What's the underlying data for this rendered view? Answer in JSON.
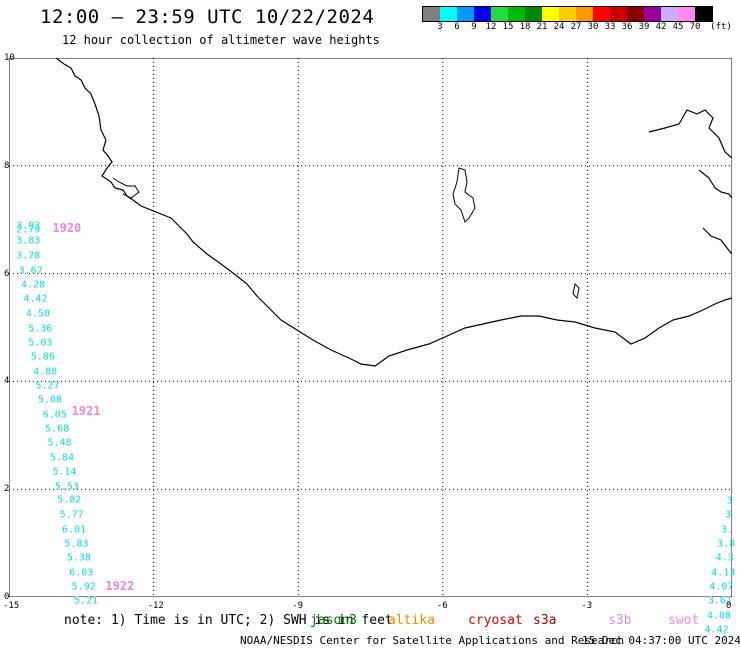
{
  "header": {
    "title": "12:00 – 23:59 UTC 10/22/2024",
    "subtitle": "12 hour collection of altimeter wave heights"
  },
  "legend": {
    "unit": "(ft)",
    "colors": [
      "#808080",
      "#00ffff",
      "#0099ff",
      "#0000ee",
      "#22dd44",
      "#00bb00",
      "#008800",
      "#ffff00",
      "#ffcc00",
      "#ff9900",
      "#ff0000",
      "#cc0000",
      "#880000",
      "#990099",
      "#ccaaff",
      "#ff88ee",
      "#000000"
    ],
    "ticks": [
      "3",
      "6",
      "9",
      "12",
      "15",
      "18",
      "21",
      "24",
      "27",
      "30",
      "33",
      "36",
      "39",
      "42",
      "45",
      "70"
    ]
  },
  "chart_data": {
    "type": "map",
    "xlim": [
      -15,
      0
    ],
    "ylim": [
      0,
      10
    ],
    "xticks": [
      "-15",
      "-12",
      "-9",
      "-6",
      "-3",
      "0"
    ],
    "yticks": [
      "10",
      "8",
      "6",
      "4",
      "2",
      "0"
    ],
    "grid": true,
    "passes": [
      {
        "label": "1920",
        "x": -13.8,
        "y": 6.85
      },
      {
        "label": "1921",
        "x": -13.4,
        "y": 3.45
      },
      {
        "label": "1922",
        "x": -12.7,
        "y": 0.2
      }
    ],
    "swh_values": [
      {
        "x": -14.6,
        "y": 6.88,
        "v": "3.93"
      },
      {
        "x": -14.6,
        "y": 6.8,
        "v": "2.79"
      },
      {
        "x": -14.6,
        "y": 6.6,
        "v": "3.83"
      },
      {
        "x": -14.6,
        "y": 6.32,
        "v": "3.78"
      },
      {
        "x": -14.55,
        "y": 6.05,
        "v": "3.67"
      },
      {
        "x": -14.5,
        "y": 5.78,
        "v": "4.28"
      },
      {
        "x": -14.45,
        "y": 5.52,
        "v": "4.42"
      },
      {
        "x": -14.4,
        "y": 5.25,
        "v": "4.50"
      },
      {
        "x": -14.35,
        "y": 4.98,
        "v": "5.36"
      },
      {
        "x": -14.35,
        "y": 4.72,
        "v": "5.03"
      },
      {
        "x": -14.3,
        "y": 4.45,
        "v": "5.86"
      },
      {
        "x": -14.25,
        "y": 4.18,
        "v": "4.88"
      },
      {
        "x": -14.2,
        "y": 3.92,
        "v": "5.27"
      },
      {
        "x": -14.15,
        "y": 3.65,
        "v": "5.08"
      },
      {
        "x": -14.05,
        "y": 3.38,
        "v": "6.05"
      },
      {
        "x": -14.0,
        "y": 3.12,
        "v": "5.68"
      },
      {
        "x": -13.95,
        "y": 2.85,
        "v": "5.48"
      },
      {
        "x": -13.9,
        "y": 2.58,
        "v": "5.84"
      },
      {
        "x": -13.85,
        "y": 2.32,
        "v": "5.14"
      },
      {
        "x": -13.8,
        "y": 2.05,
        "v": "5.53"
      },
      {
        "x": -13.75,
        "y": 1.8,
        "v": "5.82"
      },
      {
        "x": -13.7,
        "y": 1.52,
        "v": "5.77"
      },
      {
        "x": -13.65,
        "y": 1.25,
        "v": "6.01"
      },
      {
        "x": -13.6,
        "y": 0.98,
        "v": "5.83"
      },
      {
        "x": -13.55,
        "y": 0.72,
        "v": "5.38"
      },
      {
        "x": -13.5,
        "y": 0.45,
        "v": "6.03"
      },
      {
        "x": -13.45,
        "y": 0.18,
        "v": "5.92"
      },
      {
        "x": -13.4,
        "y": -0.08,
        "v": "5.21"
      },
      {
        "x": -0.05,
        "y": 1.78,
        "v": "3"
      },
      {
        "x": -0.08,
        "y": 1.52,
        "v": "3"
      },
      {
        "x": -0.1,
        "y": 1.25,
        "v": "3."
      },
      {
        "x": -0.12,
        "y": 0.98,
        "v": "3.8"
      },
      {
        "x": -0.15,
        "y": 0.72,
        "v": "4.3"
      },
      {
        "x": -0.18,
        "y": 0.45,
        "v": "4.13"
      },
      {
        "x": -0.22,
        "y": 0.18,
        "v": "4.07"
      },
      {
        "x": -0.25,
        "y": -0.08,
        "v": "3.61"
      },
      {
        "x": -0.27,
        "y": -0.35,
        "v": "4.08"
      },
      {
        "x": -0.32,
        "y": -0.62,
        "v": "4.42"
      }
    ]
  },
  "footer": {
    "note": "note:  1) Time is in UTC; 2) SWH is in feet",
    "satellites": [
      {
        "name": "jason3",
        "color": "#007700"
      },
      {
        "name": "altika",
        "color": "#ee8800"
      },
      {
        "name": "cryosat",
        "color": "#dd0000"
      },
      {
        "name": "s3a",
        "color": "#990000"
      },
      {
        "name": "s3b",
        "color": "#bb99ee"
      },
      {
        "name": "swot",
        "color": "#ff88cc"
      }
    ],
    "credit": "NOAA/NESDIS Center for Satellite Applications and Research",
    "timestamp": "15 Dec 04:37:00 UTC 2024"
  }
}
